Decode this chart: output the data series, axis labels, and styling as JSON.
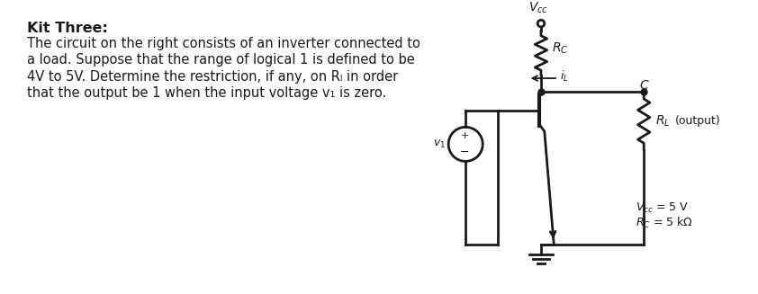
{
  "title": "Kit Three:",
  "body_lines": [
    "The circuit on the right consists of an inverter connected to",
    "a load. Suppose that the range of logical 1 is defined to be",
    "4V to 5V. Determine the restriction, if any, on R",
    "that the output be 1 when the input voltage v",
    " is zero."
  ],
  "vcc_label": "V",
  "rc_label": "R",
  "il_label": "i",
  "c_label": "C",
  "rl_label": "R",
  "output_label": "(output)",
  "vi_label": "v",
  "bottom_line1": "V",
  "bottom_line2": "R",
  "bg_color": "#ffffff",
  "line_color": "#1a1a1a"
}
